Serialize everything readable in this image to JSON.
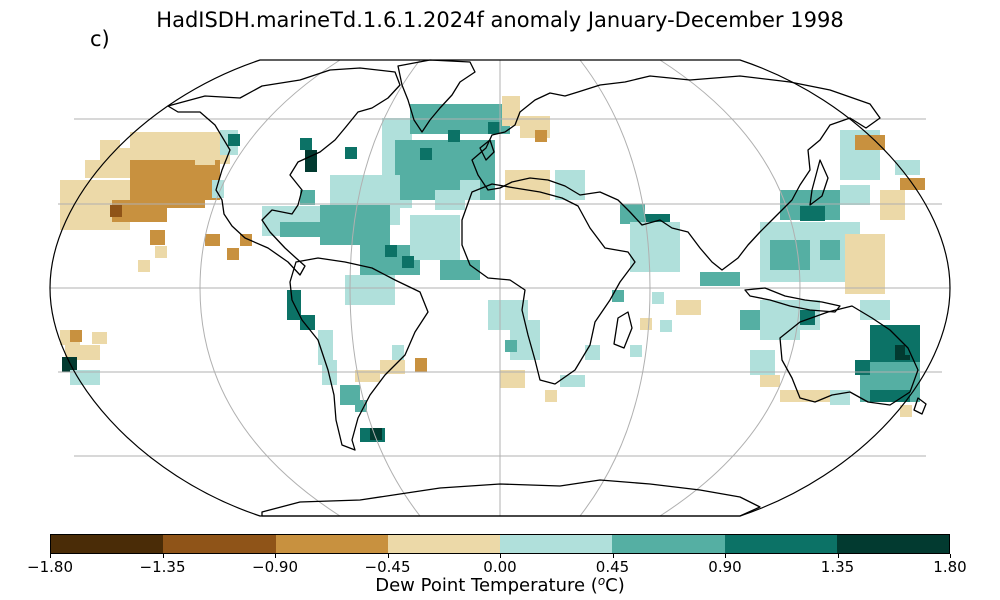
{
  "title": "HadISDH.marineTd.1.6.1.2024f anomaly January-December 1998",
  "panel_label": "c)",
  "colorbar": {
    "label": "Dew Point Temperature (",
    "label_sup": "o",
    "label_end": "C)",
    "ticks": [
      "−1.80",
      "−1.35",
      "−0.90",
      "−0.45",
      "0.00",
      "0.45",
      "0.90",
      "1.35",
      "1.80"
    ],
    "colors": [
      "#4a2c07",
      "#8f5418",
      "#c8913f",
      "#ecd9a8",
      "#b0e0db",
      "#55afa3",
      "#0c7266",
      "#023a30"
    ]
  },
  "map_data": {
    "projection": "Robinson",
    "lon_range": [
      -180,
      180
    ],
    "lat_range": [
      -90,
      90
    ],
    "cell_size_deg": 5,
    "anomaly_bins": [
      {
        "range": [
          -1.8,
          -1.35
        ]
      },
      {
        "range": [
          -1.35,
          -0.9
        ]
      },
      {
        "range": [
          -0.9,
          -0.45
        ]
      },
      {
        "range": [
          -0.45,
          0.0
        ]
      },
      {
        "range": [
          0.0,
          0.45
        ]
      },
      {
        "range": [
          0.45,
          0.9
        ]
      },
      {
        "range": [
          0.9,
          1.35
        ]
      },
      {
        "range": [
          1.35,
          1.8
        ]
      }
    ]
  }
}
